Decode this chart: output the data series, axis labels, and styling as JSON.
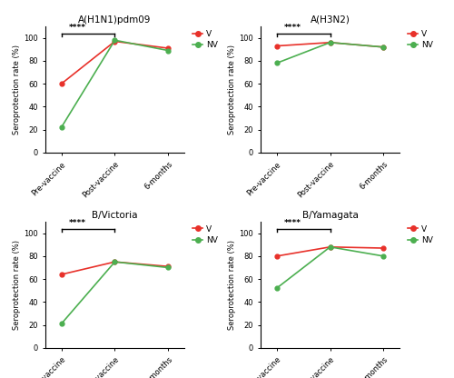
{
  "subplots": [
    {
      "title": "A(H1N1)pdm09",
      "V": [
        60,
        97,
        91
      ],
      "NV": [
        22,
        98,
        89
      ],
      "ylim": [
        0,
        110
      ],
      "yticks": [
        0,
        20,
        40,
        60,
        80,
        100
      ]
    },
    {
      "title": "A(H3N2)",
      "V": [
        93,
        96,
        92
      ],
      "NV": [
        78,
        96,
        92
      ],
      "ylim": [
        0,
        110
      ],
      "yticks": [
        0,
        20,
        40,
        60,
        80,
        100
      ]
    },
    {
      "title": "B/Victoria",
      "V": [
        64,
        75,
        71
      ],
      "NV": [
        21,
        75,
        70
      ],
      "ylim": [
        0,
        110
      ],
      "yticks": [
        0,
        20,
        40,
        60,
        80,
        100
      ]
    },
    {
      "title": "B/Yamagata",
      "V": [
        80,
        88,
        87
      ],
      "NV": [
        52,
        88,
        80
      ],
      "ylim": [
        0,
        110
      ],
      "yticks": [
        0,
        20,
        40,
        60,
        80,
        100
      ]
    }
  ],
  "xticklabels": [
    "Pre-vaccine",
    "Post-vaccine",
    "6-months"
  ],
  "ylabel": "Seroprotection rate (%)",
  "color_V": "#e8312a",
  "color_NV": "#4caf50",
  "sig_text": "****"
}
